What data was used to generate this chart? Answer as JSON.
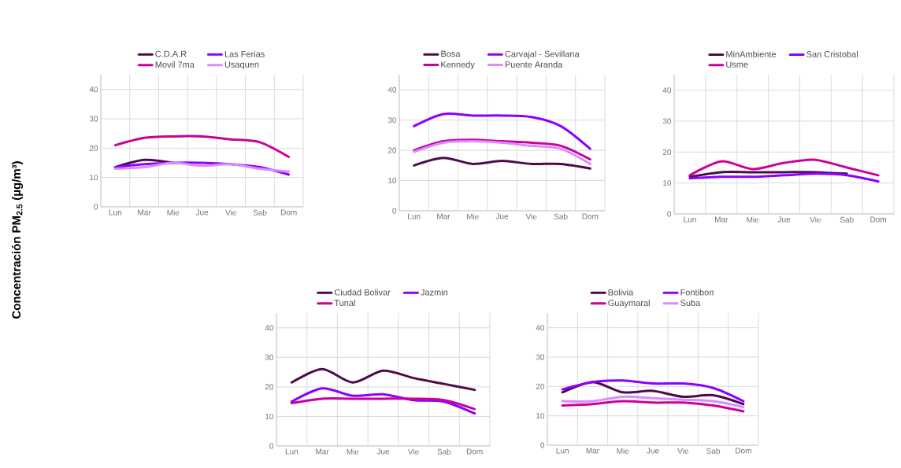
{
  "chart_data": [
    {
      "type": "line",
      "ylabel": "Concentración PM$_{2.5}$ (µg/m³)",
      "categories": [
        "Lun",
        "Mar",
        "Mie",
        "Jue",
        "Vie",
        "Sab",
        "Dom"
      ],
      "ylim": [
        0,
        45
      ],
      "yticks": [
        0,
        10,
        20,
        30,
        40
      ],
      "grid": true,
      "legend": "top",
      "series": [
        {
          "name": "C.D.A.R",
          "color": "#4d0a4a",
          "values": [
            13.5,
            16,
            15,
            null,
            null,
            null,
            null
          ]
        },
        {
          "name": "Las Ferias",
          "color": "#8c00ff",
          "values": [
            13.5,
            14.5,
            15,
            15,
            14.5,
            13.5,
            11
          ]
        },
        {
          "name": "Movil 7ma",
          "color": "#cc0099",
          "values": [
            21,
            23.5,
            24,
            24,
            23,
            22,
            17
          ]
        },
        {
          "name": "Usaquen",
          "color": "#d98cff",
          "values": [
            13,
            13.5,
            15,
            14,
            14.5,
            13,
            12
          ]
        }
      ]
    },
    {
      "type": "line",
      "categories": [
        "Lun",
        "Mar",
        "Mie",
        "Jue",
        "Vie",
        "Sab",
        "Dom"
      ],
      "ylim": [
        0,
        45
      ],
      "yticks": [
        0,
        10,
        20,
        30,
        40
      ],
      "grid": true,
      "legend": "top",
      "series": [
        {
          "name": "Bosa",
          "color": "#4d0a4a",
          "values": [
            15,
            17.5,
            15.5,
            16.5,
            15.5,
            15.5,
            14
          ]
        },
        {
          "name": "Carvajal - Sevillana",
          "color": "#8c00ff",
          "values": [
            28,
            32,
            31.5,
            31.5,
            31,
            28,
            20.5
          ]
        },
        {
          "name": "Kennedy",
          "color": "#cc0099",
          "values": [
            20,
            23,
            23.5,
            23,
            22.5,
            21.5,
            17
          ]
        },
        {
          "name": "Puente Aranda",
          "color": "#d98cff",
          "values": [
            19.5,
            22.5,
            23,
            22.5,
            21.5,
            20.5,
            15.5
          ]
        }
      ]
    },
    {
      "type": "line",
      "categories": [
        "Lun",
        "Mar",
        "Mie",
        "Jue",
        "Vie",
        "Sab",
        "Dom"
      ],
      "ylim": [
        0,
        45
      ],
      "yticks": [
        0,
        10,
        20,
        30,
        40
      ],
      "grid": true,
      "legend": "top",
      "series": [
        {
          "name": "MinAmbiente",
          "color": "#4d0a4a",
          "values": [
            12,
            13.5,
            13.5,
            13.5,
            13.5,
            13,
            null
          ]
        },
        {
          "name": "San Cristobal",
          "color": "#8c00ff",
          "values": [
            11.5,
            12,
            12,
            12.5,
            13,
            12.5,
            10.5
          ]
        },
        {
          "name": "Usme",
          "color": "#cc0099",
          "values": [
            12.5,
            17,
            14.5,
            16.5,
            17.5,
            15,
            12.5
          ]
        }
      ]
    },
    {
      "type": "line",
      "categories": [
        "Lun",
        "Mar",
        "Mie",
        "Jue",
        "Vie",
        "Sab",
        "Dom"
      ],
      "ylim": [
        0,
        45
      ],
      "yticks": [
        0,
        10,
        20,
        30,
        40
      ],
      "grid": true,
      "legend": "top",
      "series": [
        {
          "name": "Ciudad Bolivar",
          "color": "#4d0a4a",
          "values": [
            21.5,
            26,
            21.5,
            25.5,
            23,
            21,
            19
          ]
        },
        {
          "name": "Jazmin",
          "color": "#8c00ff",
          "values": [
            15,
            19.5,
            17,
            17.5,
            15.5,
            15,
            11
          ]
        },
        {
          "name": "Tunal",
          "color": "#cc0099",
          "values": [
            14.5,
            16,
            16,
            16,
            16,
            15.5,
            12.5
          ]
        }
      ]
    },
    {
      "type": "line",
      "categories": [
        "Lun",
        "Mar",
        "Mie",
        "Jue",
        "Vie",
        "Sab",
        "Dom"
      ],
      "ylim": [
        0,
        45
      ],
      "yticks": [
        0,
        10,
        20,
        30,
        40
      ],
      "grid": true,
      "legend": "top",
      "series": [
        {
          "name": "Bolivia",
          "color": "#4d0a4a",
          "values": [
            18,
            21.5,
            18,
            18.5,
            16.5,
            17,
            14
          ]
        },
        {
          "name": "Fontibon",
          "color": "#8c00ff",
          "values": [
            19,
            21.5,
            22,
            21,
            21,
            19.5,
            15
          ]
        },
        {
          "name": "Guaymaral",
          "color": "#cc0099",
          "values": [
            13.5,
            14,
            15,
            14.5,
            14.5,
            13.5,
            11.5
          ]
        },
        {
          "name": "Suba",
          "color": "#d98cff",
          "values": [
            15,
            15,
            16.5,
            16,
            15.5,
            15,
            13
          ]
        }
      ]
    }
  ]
}
